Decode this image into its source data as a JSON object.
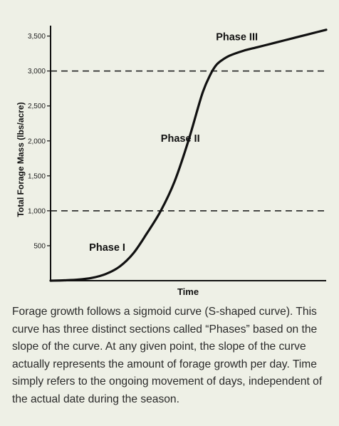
{
  "chart_data": {
    "type": "line",
    "title": "",
    "xlabel": "Time",
    "ylabel": "Total Forage Mass (lbs/acre)",
    "xlim": [
      0,
      100
    ],
    "ylim": [
      0,
      3700
    ],
    "y_ticks": [
      {
        "value": 500,
        "label": "500"
      },
      {
        "value": 1000,
        "label": "1,000"
      },
      {
        "value": 1500,
        "label": "1,500"
      },
      {
        "value": 2000,
        "label": "2,000"
      },
      {
        "value": 2500,
        "label": "2,500"
      },
      {
        "value": 3000,
        "label": "3,000"
      },
      {
        "value": 3500,
        "label": "3,500"
      }
    ],
    "reference_lines": [
      {
        "y": 1000,
        "style": "dashed"
      },
      {
        "y": 3000,
        "style": "dashed"
      }
    ],
    "series": [
      {
        "x": [
          0,
          5,
          10,
          15,
          20,
          25,
          30,
          35,
          40,
          45,
          50,
          55,
          58,
          60,
          62,
          65,
          70,
          75,
          80,
          85,
          90,
          95,
          100
        ],
        "values": [
          0,
          5,
          15,
          40,
          95,
          200,
          390,
          680,
          1000,
          1420,
          2000,
          2670,
          2950,
          3080,
          3150,
          3220,
          3290,
          3340,
          3390,
          3440,
          3490,
          3540,
          3590
        ],
        "color": "#111111"
      }
    ],
    "annotations": [
      {
        "text": "Phase I",
        "x": 14,
        "y": 430
      },
      {
        "text": "Phase II",
        "x": 40,
        "y": 1990
      },
      {
        "text": "Phase III",
        "x": 60,
        "y": 3440
      }
    ],
    "grid": false
  },
  "caption": "Forage growth follows a sigmoid curve (S-shaped curve). This curve has three distinct sections called “Phases” based on the slope of the curve. At any given point, the slope of the curve actually represents the amount of forage growth per day. Time simply refers to the ongoing movement of days, independent of the actual date during the season.",
  "colors": {
    "background": "#eef0e6",
    "axis": "#111111",
    "curve": "#111111",
    "text": "#2a2a2a"
  }
}
